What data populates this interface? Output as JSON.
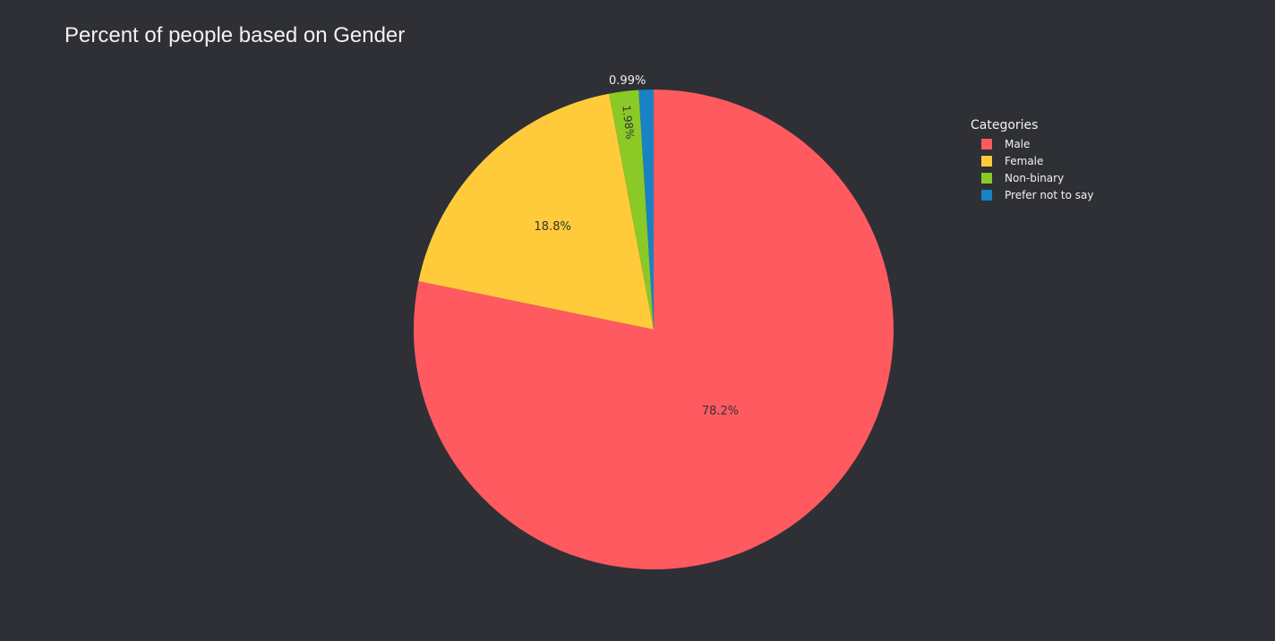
{
  "chart_data": {
    "type": "pie",
    "title": "Percent of people based on Gender",
    "legend_title": "Categories",
    "legend_position": "top-right",
    "slices": [
      {
        "label": "Male",
        "percent": 78.2,
        "percent_label": "78.2%",
        "color": "#ff5a5f",
        "label_placement": "inside"
      },
      {
        "label": "Female",
        "percent": 18.8,
        "percent_label": "18.8%",
        "color": "#ffcb3b",
        "label_placement": "inside"
      },
      {
        "label": "Non-binary",
        "percent": 1.98,
        "percent_label": "1.98%",
        "color": "#8ac926",
        "label_placement": "inside"
      },
      {
        "label": "Prefer not to say",
        "percent": 0.99,
        "percent_label": "0.99%",
        "color": "#1982c4",
        "label_placement": "outside"
      }
    ]
  }
}
